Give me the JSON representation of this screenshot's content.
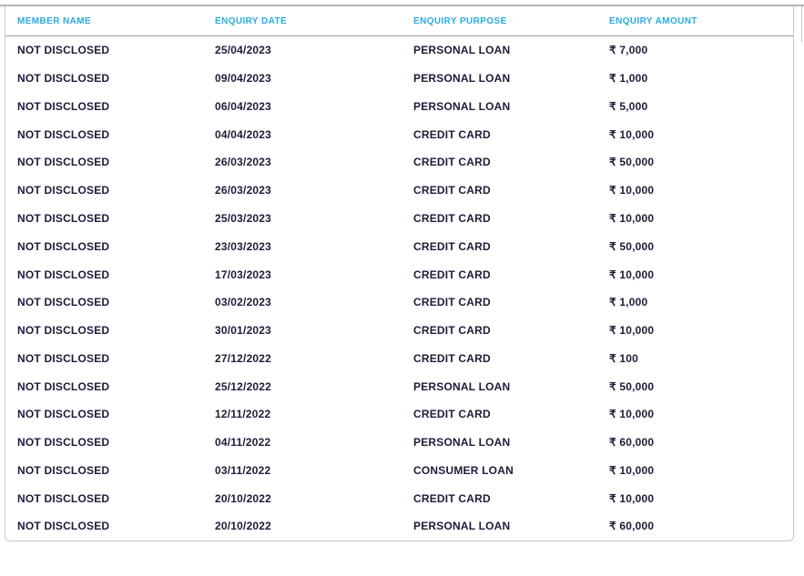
{
  "colors": {
    "header_text": "#29abe2",
    "body_text": "#1c1c3a",
    "border": "#c8c8c8",
    "header_border": "#9b9b9b",
    "top_border": "#b5b5b5"
  },
  "table": {
    "columns": [
      {
        "key": "member",
        "label": "MEMBER NAME"
      },
      {
        "key": "date",
        "label": "ENQUIRY DATE"
      },
      {
        "key": "purpose",
        "label": "ENQUIRY PURPOSE"
      },
      {
        "key": "amount",
        "label": "ENQUIRY AMOUNT"
      }
    ],
    "rows": [
      {
        "member": "NOT DISCLOSED",
        "date": "25/04/2023",
        "purpose": "PERSONAL LOAN",
        "amount": "₹ 7,000"
      },
      {
        "member": "NOT DISCLOSED",
        "date": "09/04/2023",
        "purpose": "PERSONAL LOAN",
        "amount": "₹ 1,000"
      },
      {
        "member": "NOT DISCLOSED",
        "date": "06/04/2023",
        "purpose": "PERSONAL LOAN",
        "amount": "₹ 5,000"
      },
      {
        "member": "NOT DISCLOSED",
        "date": "04/04/2023",
        "purpose": "CREDIT CARD",
        "amount": "₹ 10,000"
      },
      {
        "member": "NOT DISCLOSED",
        "date": "26/03/2023",
        "purpose": "CREDIT CARD",
        "amount": "₹ 50,000"
      },
      {
        "member": "NOT DISCLOSED",
        "date": "26/03/2023",
        "purpose": "CREDIT CARD",
        "amount": "₹ 10,000"
      },
      {
        "member": "NOT DISCLOSED",
        "date": "25/03/2023",
        "purpose": "CREDIT CARD",
        "amount": "₹ 10,000"
      },
      {
        "member": "NOT DISCLOSED",
        "date": "23/03/2023",
        "purpose": "CREDIT CARD",
        "amount": "₹ 50,000"
      },
      {
        "member": "NOT DISCLOSED",
        "date": "17/03/2023",
        "purpose": "CREDIT CARD",
        "amount": "₹ 10,000"
      },
      {
        "member": "NOT DISCLOSED",
        "date": "03/02/2023",
        "purpose": "CREDIT CARD",
        "amount": "₹ 1,000"
      },
      {
        "member": "NOT DISCLOSED",
        "date": "30/01/2023",
        "purpose": "CREDIT CARD",
        "amount": "₹ 10,000"
      },
      {
        "member": "NOT DISCLOSED",
        "date": "27/12/2022",
        "purpose": "CREDIT CARD",
        "amount": "₹ 100"
      },
      {
        "member": "NOT DISCLOSED",
        "date": "25/12/2022",
        "purpose": "PERSONAL LOAN",
        "amount": "₹ 50,000"
      },
      {
        "member": "NOT DISCLOSED",
        "date": "12/11/2022",
        "purpose": "CREDIT CARD",
        "amount": "₹ 10,000"
      },
      {
        "member": "NOT DISCLOSED",
        "date": "04/11/2022",
        "purpose": "PERSONAL LOAN",
        "amount": "₹ 60,000"
      },
      {
        "member": "NOT DISCLOSED",
        "date": "03/11/2022",
        "purpose": "CONSUMER LOAN",
        "amount": "₹ 10,000"
      },
      {
        "member": "NOT DISCLOSED",
        "date": "20/10/2022",
        "purpose": "CREDIT CARD",
        "amount": "₹ 10,000"
      },
      {
        "member": "NOT DISCLOSED",
        "date": "20/10/2022",
        "purpose": "PERSONAL LOAN",
        "amount": "₹ 60,000"
      }
    ]
  }
}
